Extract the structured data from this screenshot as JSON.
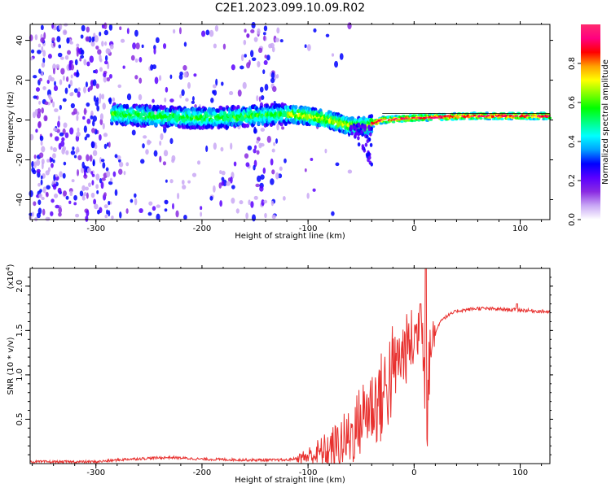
{
  "title": "C2E1.2023.099.10.09.R02",
  "chart_data": [
    {
      "type": "heatmap",
      "name": "spectrogram",
      "xlabel": "Height of straight line (km)",
      "ylabel": "Frequency (Hz)",
      "xlim": [
        -362,
        128
      ],
      "ylim": [
        -50,
        48
      ],
      "xticks": [
        -300,
        -200,
        -100,
        0,
        100
      ],
      "yticks": [
        -40,
        -20,
        0,
        20,
        40
      ],
      "colorbar": {
        "label": "Normalized spectral amplitude",
        "range": [
          0,
          1
        ],
        "ticks": [
          0.0,
          0.2,
          0.4,
          0.6,
          0.8
        ],
        "colormap": [
          "#ffffff",
          "#c9a8f5",
          "#8a2be2",
          "#5a00ff",
          "#0000ff",
          "#00a0ff",
          "#00ffff",
          "#00ff80",
          "#00ff00",
          "#80ff00",
          "#ffff00",
          "#ffa000",
          "#ff0000",
          "#ff0080",
          "#ff2a6e"
        ]
      },
      "signal_track": [
        {
          "x": -285,
          "f": 3
        },
        {
          "x": -250,
          "f": 2
        },
        {
          "x": -200,
          "f": 1
        },
        {
          "x": -150,
          "f": 2
        },
        {
          "x": -120,
          "f": 3
        },
        {
          "x": -100,
          "f": 2
        },
        {
          "x": -80,
          "f": 0
        },
        {
          "x": -60,
          "f": -3
        },
        {
          "x": -45,
          "f": -3
        },
        {
          "x": -30,
          "f": 0
        },
        {
          "x": 0,
          "f": 1
        },
        {
          "x": 50,
          "f": 2
        },
        {
          "x": 100,
          "f": 2
        },
        {
          "x": 128,
          "f": 2
        }
      ]
    },
    {
      "type": "line",
      "name": "snr",
      "xlabel": "Height of straight line (km)",
      "ylabel": "SNR (10 * v/v)",
      "y_multiplier": "(x10",
      "y_multiplier_exp": "4",
      "y_multiplier_close": ")",
      "xlim": [
        -362,
        128
      ],
      "ylim": [
        0,
        2.2
      ],
      "xticks": [
        -300,
        -200,
        -100,
        0,
        100
      ],
      "yticks": [
        0.5,
        1.0,
        1.5,
        2.0
      ],
      "color": "#e8302e",
      "series_keypoints": [
        {
          "x": -362,
          "y": 0.02
        },
        {
          "x": -300,
          "y": 0.02
        },
        {
          "x": -270,
          "y": 0.05
        },
        {
          "x": -230,
          "y": 0.07
        },
        {
          "x": -200,
          "y": 0.05
        },
        {
          "x": -150,
          "y": 0.04
        },
        {
          "x": -120,
          "y": 0.04
        },
        {
          "x": -100,
          "y": 0.08
        },
        {
          "x": -80,
          "y": 0.15
        },
        {
          "x": -60,
          "y": 0.3
        },
        {
          "x": -45,
          "y": 0.6
        },
        {
          "x": -30,
          "y": 0.75
        },
        {
          "x": -20,
          "y": 1.05
        },
        {
          "x": -10,
          "y": 1.25
        },
        {
          "x": 0,
          "y": 1.4
        },
        {
          "x": 8,
          "y": 1.55
        },
        {
          "x": 12,
          "y": 0.4
        },
        {
          "x": 15,
          "y": 1.3
        },
        {
          "x": 25,
          "y": 1.62
        },
        {
          "x": 40,
          "y": 1.72
        },
        {
          "x": 60,
          "y": 1.75
        },
        {
          "x": 100,
          "y": 1.73
        },
        {
          "x": 128,
          "y": 1.71
        }
      ],
      "spikes": [
        {
          "x": 11,
          "y": 2.2
        },
        {
          "x": 6,
          "y": 1.8
        },
        {
          "x": 97,
          "y": 1.8
        }
      ]
    }
  ]
}
